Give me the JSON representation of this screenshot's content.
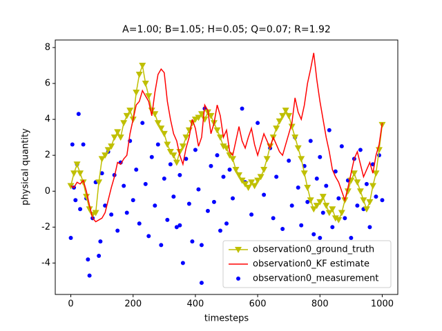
{
  "chart_data": {
    "type": "line",
    "title": "A=1.00; B=1.05; H=0.05; Q=0.07; R=1.92",
    "x_label": "timesteps",
    "y_label": "physical quantity",
    "xlim": [
      -50,
      1050
    ],
    "ylim": [
      -5.75,
      8.42
    ],
    "xticks": [
      0,
      200,
      400,
      600,
      800,
      1000
    ],
    "yticks": [
      -4,
      -2,
      0,
      2,
      4,
      6,
      8
    ],
    "legend": "lower right",
    "x": [
      0,
      10,
      20,
      30,
      40,
      50,
      60,
      70,
      80,
      90,
      100,
      110,
      120,
      130,
      140,
      150,
      160,
      170,
      180,
      190,
      200,
      210,
      220,
      230,
      240,
      250,
      260,
      270,
      280,
      290,
      300,
      310,
      320,
      330,
      340,
      350,
      360,
      370,
      380,
      390,
      400,
      410,
      420,
      430,
      440,
      450,
      460,
      470,
      480,
      490,
      500,
      510,
      520,
      530,
      540,
      550,
      560,
      570,
      580,
      590,
      600,
      610,
      620,
      630,
      640,
      650,
      660,
      670,
      680,
      690,
      700,
      710,
      720,
      730,
      740,
      750,
      760,
      770,
      780,
      790,
      800,
      810,
      820,
      830,
      840,
      850,
      860,
      870,
      880,
      890,
      900,
      910,
      920,
      930,
      940,
      950,
      960,
      970,
      980,
      990,
      1000
    ],
    "series": [
      {
        "name": "observation0_ground_truth",
        "type": "line",
        "marker": "triangle-down",
        "color": "#bfbf00",
        "values": [
          0.3,
          1.0,
          1.5,
          1.0,
          0.5,
          -0.3,
          -1.0,
          -1.3,
          -1.2,
          0.5,
          1.8,
          2.0,
          2.3,
          2.5,
          3.0,
          3.3,
          3.0,
          3.8,
          4.2,
          4.5,
          4.0,
          5.5,
          6.5,
          7.0,
          6.0,
          5.3,
          4.5,
          4.3,
          3.8,
          3.5,
          3.2,
          2.6,
          2.2,
          2.0,
          1.6,
          2.2,
          2.5,
          3.0,
          3.4,
          3.8,
          4.0,
          4.1,
          4.3,
          4.0,
          4.4,
          4.2,
          3.8,
          3.4,
          3.0,
          2.5,
          2.4,
          2.0,
          1.8,
          1.2,
          0.9,
          0.6,
          0.4,
          0.2,
          0.5,
          0.3,
          0.6,
          0.8,
          1.2,
          1.8,
          2.5,
          3.0,
          3.5,
          3.9,
          4.2,
          4.5,
          4.2,
          3.6,
          3.0,
          2.4,
          1.8,
          1.0,
          0.2,
          -0.5,
          -1.0,
          -0.8,
          -0.6,
          -0.3,
          -0.8,
          -1.2,
          -1.0,
          -1.5,
          -1.6,
          -1.2,
          -0.5,
          0.0,
          0.6,
          1.0,
          0.5,
          0.0,
          -0.5,
          -1.0,
          -0.6,
          0.3,
          1.0,
          2.3,
          3.7
        ]
      },
      {
        "name": "observation0_KF estimate",
        "type": "line",
        "color": "#ff0000",
        "values": [
          0.3,
          0.2,
          0.5,
          0.4,
          0.6,
          0.0,
          -0.8,
          -1.5,
          -1.7,
          -1.6,
          -1.5,
          -1.2,
          -0.5,
          0.2,
          0.8,
          1.6,
          1.5,
          1.8,
          2.0,
          3.2,
          4.0,
          4.8,
          5.0,
          5.6,
          5.3,
          5.0,
          4.2,
          5.5,
          6.5,
          6.8,
          6.6,
          5.0,
          4.0,
          3.2,
          2.8,
          2.0,
          1.5,
          2.4,
          3.0,
          4.0,
          3.5,
          2.5,
          3.0,
          4.8,
          4.5,
          3.2,
          3.8,
          4.8,
          4.2,
          3.0,
          3.4,
          2.2,
          2.0,
          2.8,
          3.6,
          2.8,
          2.4,
          3.0,
          3.5,
          2.6,
          2.0,
          2.6,
          3.2,
          2.8,
          2.4,
          3.0,
          2.6,
          2.2,
          2.0,
          2.6,
          3.2,
          3.8,
          5.2,
          4.4,
          4.0,
          4.8,
          6.0,
          6.8,
          7.7,
          6.2,
          5.0,
          4.0,
          3.0,
          2.2,
          1.2,
          0.8,
          0.5,
          0.0,
          -0.5,
          0.2,
          1.0,
          1.8,
          2.2,
          1.5,
          0.8,
          1.2,
          1.6,
          1.0,
          2.0,
          2.6,
          3.8
        ]
      },
      {
        "name": "observation0_measurement",
        "type": "scatter",
        "color": "#0000ff",
        "x": [
          0,
          5,
          10,
          15,
          20,
          25,
          30,
          40,
          50,
          55,
          60,
          70,
          80,
          90,
          95,
          100,
          110,
          120,
          130,
          140,
          150,
          160,
          170,
          180,
          190,
          200,
          210,
          220,
          230,
          240,
          250,
          260,
          270,
          280,
          290,
          300,
          310,
          320,
          330,
          340,
          350,
          360,
          370,
          380,
          390,
          400,
          410,
          420,
          430,
          440,
          450,
          460,
          470,
          480,
          490,
          500,
          510,
          520,
          550,
          560,
          580,
          600,
          620,
          640,
          650,
          660,
          680,
          700,
          710,
          720,
          730,
          740,
          750,
          760,
          770,
          780,
          790,
          800,
          810,
          820,
          830,
          840,
          850,
          860,
          870,
          880,
          890,
          900,
          910,
          920,
          930,
          940,
          950,
          960,
          970,
          980,
          990,
          1000,
          420,
          800,
          350
        ],
        "values": [
          -2.6,
          2.6,
          0.2,
          -0.5,
          1.5,
          4.3,
          -1.0,
          2.6,
          -0.4,
          -3.8,
          -4.7,
          -1.5,
          0.5,
          -3.6,
          -2.8,
          1.0,
          -0.8,
          2.2,
          -1.3,
          0.9,
          -2.2,
          1.6,
          0.3,
          -1.2,
          2.8,
          -0.5,
          1.2,
          -1.8,
          3.8,
          0.4,
          -2.5,
          1.9,
          -0.8,
          2.6,
          -3.0,
          0.7,
          -1.6,
          1.5,
          -0.3,
          -2.0,
          0.9,
          -4.0,
          1.8,
          -0.7,
          -2.8,
          2.3,
          0.1,
          -3.0,
          4.6,
          -1.1,
          1.4,
          -0.6,
          2.0,
          -2.2,
          0.8,
          -1.8,
          1.2,
          -0.4,
          4.6,
          0.5,
          -1.3,
          3.8,
          -0.2,
          2.4,
          -1.5,
          0.8,
          -2.1,
          1.7,
          -0.8,
          3.0,
          0.2,
          -1.9,
          1.4,
          -0.6,
          2.8,
          -2.4,
          0.7,
          1.9,
          -1.2,
          0.3,
          3.4,
          -2.0,
          1.1,
          -0.4,
          2.5,
          -1.5,
          0.6,
          -2.6,
          1.8,
          -0.8,
          2.3,
          -1.0,
          0.4,
          -2.0,
          1.5,
          -0.3,
          2.0,
          -0.5,
          -5.1,
          -2.6,
          -1.9
        ]
      }
    ]
  }
}
